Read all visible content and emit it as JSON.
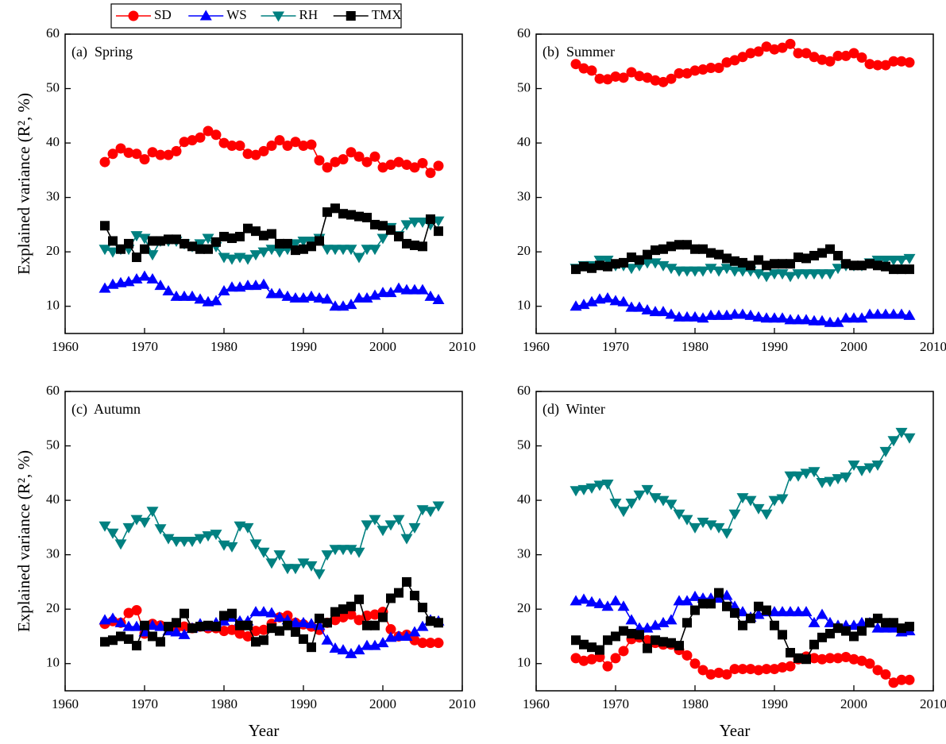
{
  "legend": "top",
  "chart_data": [
    {
      "type": "line",
      "title": "(a)  Spring",
      "ylabel": "Explained variance (R², %)",
      "xlim": [
        1960,
        2010
      ],
      "xticks": [
        1960,
        1970,
        1980,
        1990,
        2000,
        2010
      ],
      "ylim": [
        5,
        60
      ],
      "yticks": [
        10,
        20,
        30,
        40,
        50,
        60
      ],
      "x": [
        1965,
        1966,
        1967,
        1968,
        1969,
        1970,
        1971,
        1972,
        1973,
        1974,
        1975,
        1976,
        1977,
        1978,
        1979,
        1980,
        1981,
        1982,
        1983,
        1984,
        1985,
        1986,
        1987,
        1988,
        1989,
        1990,
        1991,
        1992,
        1993,
        1994,
        1995,
        1996,
        1997,
        1998,
        1999,
        2000,
        2001,
        2002,
        2003,
        2004,
        2005,
        2006,
        2007
      ],
      "series": [
        {
          "name": "SD",
          "color": "#ff0000",
          "marker": "circle",
          "values": [
            36.5,
            38,
            39,
            38.2,
            38,
            37,
            38.3,
            37.8,
            37.8,
            38.5,
            40.2,
            40.5,
            41,
            42.2,
            41.5,
            40,
            39.5,
            39.5,
            38,
            37.8,
            38.5,
            39.5,
            40.5,
            39.5,
            40.2,
            39.5,
            39.7,
            36.8,
            35.5,
            36.5,
            37,
            38.3,
            37.5,
            36.5,
            37.5,
            35.5,
            36,
            36.5,
            36,
            35.5,
            36.3,
            34.5,
            35.8
          ]
        },
        {
          "name": "WS",
          "color": "#0000ff",
          "marker": "triangle-up",
          "values": [
            13.3,
            14,
            14.3,
            14.5,
            15,
            15.5,
            15,
            13.8,
            12.8,
            11.8,
            11.8,
            11.8,
            11.3,
            10.8,
            11,
            12.8,
            13.5,
            13.5,
            13.8,
            13.8,
            14,
            12.3,
            12.3,
            11.8,
            11.5,
            11.5,
            11.8,
            11.5,
            11.3,
            10,
            10,
            10.3,
            11.5,
            11.5,
            12,
            12.5,
            12.5,
            13.3,
            13,
            13,
            13,
            11.8,
            11.2
          ]
        },
        {
          "name": "RH",
          "color": "#008080",
          "marker": "triangle-down",
          "values": [
            20.5,
            20,
            20.5,
            20.5,
            23,
            22.5,
            19.5,
            22,
            22,
            22,
            21.5,
            21,
            21.5,
            22.5,
            21,
            19,
            18.7,
            19,
            18.7,
            19.5,
            20,
            20.5,
            20,
            20.5,
            21.5,
            22,
            22,
            22.5,
            20.5,
            20.5,
            20.5,
            20.5,
            19,
            20.5,
            20.5,
            22.5,
            24.5,
            23,
            25,
            25.5,
            25.5,
            25,
            25.7
          ]
        },
        {
          "name": "TMX",
          "color": "#000000",
          "marker": "square",
          "values": [
            24.8,
            22,
            20.5,
            21.5,
            19,
            20.5,
            22,
            22,
            22.3,
            22.3,
            21.5,
            21,
            20.5,
            20.5,
            21.8,
            22.8,
            22.5,
            22.8,
            24.3,
            23.8,
            23,
            23.3,
            21.5,
            21.5,
            20.3,
            20.5,
            21,
            22,
            27.3,
            28,
            27,
            26.8,
            26.5,
            26.3,
            25,
            24.8,
            24,
            22.8,
            21.5,
            21.2,
            21,
            26,
            23.8
          ]
        }
      ]
    },
    {
      "type": "line",
      "title": "(b)  Summer",
      "xlim": [
        1960,
        2010
      ],
      "xticks": [
        1960,
        1970,
        1980,
        1990,
        2000,
        2010
      ],
      "ylim": [
        5,
        60
      ],
      "yticks": [
        10,
        20,
        30,
        40,
        50,
        60
      ],
      "x": [
        1965,
        1966,
        1967,
        1968,
        1969,
        1970,
        1971,
        1972,
        1973,
        1974,
        1975,
        1976,
        1977,
        1978,
        1979,
        1980,
        1981,
        1982,
        1983,
        1984,
        1985,
        1986,
        1987,
        1988,
        1989,
        1990,
        1991,
        1992,
        1993,
        1994,
        1995,
        1996,
        1997,
        1998,
        1999,
        2000,
        2001,
        2002,
        2003,
        2004,
        2005,
        2006,
        2007
      ],
      "series": [
        {
          "name": "SD",
          "color": "#ff0000",
          "marker": "circle",
          "values": [
            54.5,
            53.7,
            53.3,
            51.8,
            51.7,
            52.2,
            52,
            53,
            52.3,
            52,
            51.5,
            51.2,
            51.8,
            52.8,
            52.8,
            53.3,
            53.5,
            53.8,
            53.8,
            54.8,
            55.2,
            55.8,
            56.5,
            56.8,
            57.7,
            57.2,
            57.5,
            58.2,
            56.5,
            56.5,
            55.8,
            55.3,
            55,
            56,
            56,
            56.5,
            55.7,
            54.5,
            54.3,
            54.3,
            55,
            55,
            54.8
          ]
        },
        {
          "name": "WS",
          "color": "#0000ff",
          "marker": "triangle-up",
          "values": [
            10,
            10.3,
            10.8,
            11.3,
            11.5,
            11,
            10.8,
            9.8,
            9.8,
            9.3,
            9,
            9,
            8.5,
            8,
            8,
            8,
            7.8,
            8.3,
            8.3,
            8.3,
            8.5,
            8.5,
            8.3,
            8,
            7.8,
            7.8,
            7.8,
            7.5,
            7.5,
            7.5,
            7.3,
            7.3,
            7,
            7,
            7.8,
            7.8,
            7.8,
            8.5,
            8.5,
            8.5,
            8.5,
            8.5,
            8.3
          ]
        },
        {
          "name": "RH",
          "color": "#008080",
          "marker": "triangle-down",
          "values": [
            17,
            17.5,
            17.5,
            18.5,
            18.5,
            17.5,
            17.5,
            17,
            17.5,
            18,
            18,
            17.5,
            17,
            16.5,
            16.5,
            16.5,
            16.5,
            17,
            16.5,
            17,
            16.5,
            16.5,
            16.5,
            16,
            15.5,
            16,
            16,
            15.5,
            16,
            16,
            16,
            16,
            16,
            17,
            17.5,
            17.5,
            17.5,
            18,
            18.5,
            18.5,
            18.5,
            18.5,
            18.8
          ]
        },
        {
          "name": "TMX",
          "color": "#000000",
          "marker": "square",
          "values": [
            16.8,
            17.3,
            17,
            17.5,
            17.3,
            17.8,
            18,
            19,
            18.5,
            19.5,
            20.3,
            20.5,
            21,
            21.3,
            21.3,
            20.5,
            20.5,
            19.8,
            19.5,
            18.8,
            18.3,
            18,
            17.5,
            18.5,
            17.5,
            17.8,
            17.8,
            17.8,
            19,
            18.8,
            19.3,
            19.8,
            20.5,
            19.3,
            17.8,
            17.5,
            17.5,
            17.8,
            17.5,
            17.3,
            16.8,
            16.8,
            16.8
          ]
        }
      ]
    },
    {
      "type": "line",
      "title": "(c)  Autumn",
      "ylabel": "Explained variance (R², %)",
      "xlabel": "Year",
      "xlim": [
        1960,
        2010
      ],
      "xticks": [
        1960,
        1970,
        1980,
        1990,
        2000,
        2010
      ],
      "ylim": [
        5,
        60
      ],
      "yticks": [
        10,
        20,
        30,
        40,
        50,
        60
      ],
      "x": [
        1965,
        1966,
        1967,
        1968,
        1969,
        1970,
        1971,
        1972,
        1973,
        1974,
        1975,
        1976,
        1977,
        1978,
        1979,
        1980,
        1981,
        1982,
        1983,
        1984,
        1985,
        1986,
        1987,
        1988,
        1989,
        1990,
        1991,
        1992,
        1993,
        1994,
        1995,
        1996,
        1997,
        1998,
        1999,
        2000,
        2001,
        2002,
        2003,
        2004,
        2005,
        2006,
        2007
      ],
      "series": [
        {
          "name": "SD",
          "color": "#ff0000",
          "marker": "circle",
          "values": [
            17.3,
            17.8,
            17.5,
            19.3,
            19.8,
            15.5,
            17.3,
            17,
            16.5,
            16.5,
            16.8,
            16.5,
            16.8,
            16.5,
            16.5,
            16,
            16.2,
            15.5,
            15,
            16,
            16.2,
            17.3,
            18.5,
            18.8,
            17.5,
            17.2,
            16.8,
            16.2,
            17.5,
            18,
            18.5,
            19,
            18,
            18.8,
            19,
            19.5,
            16.3,
            15,
            15.3,
            14.3,
            13.8,
            13.8,
            13.8
          ]
        },
        {
          "name": "WS",
          "color": "#0000ff",
          "marker": "triangle-up",
          "values": [
            18,
            18.3,
            17.5,
            16.8,
            16.8,
            15.8,
            17,
            16.8,
            16,
            15.8,
            15.3,
            16.5,
            17.3,
            16.8,
            17.5,
            17.8,
            18.5,
            17.8,
            17.8,
            19.5,
            19.5,
            19.3,
            18.5,
            18,
            17.5,
            17.5,
            17.3,
            17,
            14.3,
            12.8,
            12.5,
            11.8,
            12.5,
            13.3,
            13.3,
            13.8,
            14.8,
            15,
            15,
            15.8,
            16.8,
            18,
            17.8
          ]
        },
        {
          "name": "RH",
          "color": "#008080",
          "marker": "triangle-down",
          "values": [
            35.3,
            34,
            32,
            35,
            36.5,
            36,
            38,
            34.8,
            33,
            32.5,
            32.5,
            32.5,
            33,
            33.5,
            33.8,
            31.8,
            31.5,
            35.3,
            35,
            32,
            30.5,
            28.5,
            30,
            27.5,
            27.5,
            28.5,
            28,
            26.5,
            30,
            31,
            31,
            31,
            30.5,
            35.5,
            36.5,
            34.5,
            35.5,
            36.5,
            33,
            35,
            38.3,
            38,
            39
          ]
        },
        {
          "name": "TMX",
          "color": "#000000",
          "marker": "square",
          "values": [
            14,
            14.3,
            15,
            14.5,
            13.3,
            17,
            15,
            14,
            16.8,
            17.5,
            19.2,
            16.5,
            16.8,
            17,
            16.8,
            18.8,
            19.2,
            17,
            17,
            14,
            14.3,
            16.5,
            16,
            17,
            15.8,
            14.5,
            13,
            18.3,
            17.5,
            19.5,
            20,
            20.5,
            21.8,
            17,
            17,
            18.5,
            22,
            23,
            25,
            22.5,
            20.3,
            17.8,
            17.5
          ]
        }
      ]
    },
    {
      "type": "line",
      "title": "(d)  Winter",
      "xlabel": "Year",
      "xlim": [
        1960,
        2010
      ],
      "xticks": [
        1960,
        1970,
        1980,
        1990,
        2000,
        2010
      ],
      "ylim": [
        5,
        60
      ],
      "yticks": [
        10,
        20,
        30,
        40,
        50,
        60
      ],
      "x": [
        1965,
        1966,
        1967,
        1968,
        1969,
        1970,
        1971,
        1972,
        1973,
        1974,
        1975,
        1976,
        1977,
        1978,
        1979,
        1980,
        1981,
        1982,
        1983,
        1984,
        1985,
        1986,
        1987,
        1988,
        1989,
        1990,
        1991,
        1992,
        1993,
        1994,
        1995,
        1996,
        1997,
        1998,
        1999,
        2000,
        2001,
        2002,
        2003,
        2004,
        2005,
        2006,
        2007
      ],
      "series": [
        {
          "name": "SD",
          "color": "#ff0000",
          "marker": "circle",
          "values": [
            11,
            10.5,
            10.8,
            11.2,
            9.5,
            11,
            12.3,
            14.5,
            14.8,
            14.3,
            13.8,
            13.5,
            13.5,
            12.5,
            11.5,
            10,
            8.8,
            8,
            8.3,
            8,
            9,
            9,
            9,
            8.8,
            9,
            9,
            9.3,
            9.5,
            10.8,
            11.3,
            11,
            10.8,
            11,
            11,
            11.2,
            10.8,
            10.5,
            10,
            8.8,
            8,
            6.5,
            7,
            7
          ]
        },
        {
          "name": "WS",
          "color": "#0000ff",
          "marker": "triangle-up",
          "values": [
            21.5,
            21.8,
            21.3,
            21,
            20.5,
            21.5,
            20.5,
            18,
            16.5,
            16.5,
            17,
            17.5,
            18,
            21.5,
            21.5,
            22.3,
            22,
            22,
            22,
            22.5,
            20.5,
            19.5,
            18.5,
            19,
            19.5,
            19.5,
            19.5,
            19.5,
            19.5,
            19.5,
            17.5,
            19,
            17.5,
            17,
            17,
            17,
            17.5,
            17.5,
            16.5,
            16.5,
            16.5,
            15.8,
            16
          ]
        },
        {
          "name": "RH",
          "color": "#008080",
          "marker": "triangle-down",
          "values": [
            41.8,
            42,
            42.3,
            42.8,
            43,
            39.5,
            38,
            39.5,
            41,
            42,
            40.5,
            40,
            39.3,
            37.5,
            36.5,
            35,
            36,
            35.5,
            35,
            34,
            37.5,
            40.5,
            40,
            38.5,
            37.5,
            40,
            40.3,
            44.5,
            44.5,
            45,
            45.3,
            43.3,
            43.5,
            44,
            44.3,
            46.5,
            45.5,
            46,
            46.5,
            49,
            51,
            52.5,
            51.5
          ]
        },
        {
          "name": "TMX",
          "color": "#000000",
          "marker": "square",
          "values": [
            14.3,
            13.5,
            13,
            12.5,
            14.3,
            15,
            16,
            15.5,
            15.3,
            12.8,
            14.3,
            14,
            13.8,
            13.3,
            17.5,
            19.8,
            21,
            21,
            23,
            20.5,
            19.3,
            17,
            18.3,
            20.5,
            19.8,
            17,
            15.3,
            12,
            11,
            10.8,
            13.5,
            14.8,
            15.5,
            16.5,
            16,
            15,
            16,
            17.5,
            18.3,
            17.5,
            17.5,
            16.5,
            16.8
          ]
        }
      ]
    }
  ]
}
